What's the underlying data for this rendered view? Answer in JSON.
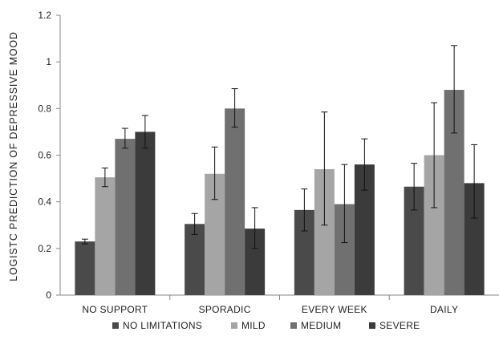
{
  "chart_data": {
    "type": "bar",
    "title": "",
    "xlabel": "",
    "ylabel": "LOGISTC  PREDICTION  OF DEPRESSIVE MOOD",
    "ylim": [
      0,
      1.2
    ],
    "yticks": [
      "0",
      "0.2",
      "0.4",
      "0.6",
      "0.8",
      "1",
      "1.2"
    ],
    "ytick_values": [
      0,
      0.2,
      0.4,
      0.6,
      0.8,
      1.0,
      1.2
    ],
    "grid": false,
    "legend_position": "bottom",
    "categories": [
      "NO SUPPORT",
      "SPORADIC",
      "EVERY WEEK",
      "DAILY"
    ],
    "series": [
      {
        "name": "NO LIMITATIONS",
        "color": "#4a4a4a",
        "values": [
          0.23,
          0.305,
          0.365,
          0.465
        ],
        "err_low": [
          0.22,
          0.26,
          0.275,
          0.365
        ],
        "err_high": [
          0.24,
          0.35,
          0.455,
          0.565
        ]
      },
      {
        "name": "MILD",
        "color": "#a5a5a5",
        "values": [
          0.505,
          0.52,
          0.54,
          0.6
        ],
        "err_low": [
          0.465,
          0.41,
          0.3,
          0.375
        ],
        "err_high": [
          0.545,
          0.635,
          0.785,
          0.825
        ]
      },
      {
        "name": "MEDIUM",
        "color": "#707070",
        "values": [
          0.67,
          0.8,
          0.39,
          0.88
        ],
        "err_low": [
          0.63,
          0.72,
          0.225,
          0.695
        ],
        "err_high": [
          0.715,
          0.885,
          0.56,
          1.07
        ]
      },
      {
        "name": "SEVERE",
        "color": "#3b3b3b",
        "values": [
          0.7,
          0.285,
          0.56,
          0.48
        ],
        "err_low": [
          0.63,
          0.2,
          0.45,
          0.33
        ],
        "err_high": [
          0.77,
          0.375,
          0.67,
          0.645
        ]
      }
    ]
  }
}
